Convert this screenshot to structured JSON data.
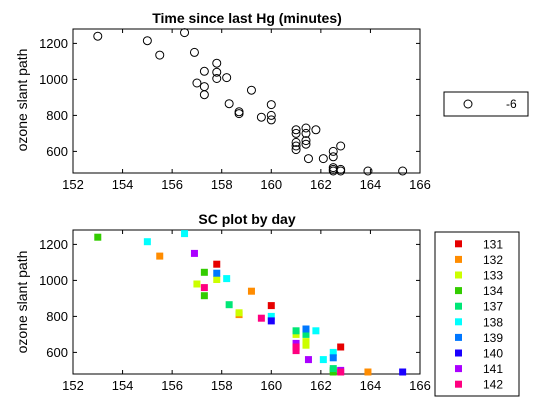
{
  "chart_data": [
    {
      "type": "scatter",
      "title": "Time since last Hg (minutes)",
      "ylabel": "ozone slant path",
      "xlim": [
        152,
        166
      ],
      "ylim": [
        480,
        1280
      ],
      "xticks": [
        152,
        154,
        156,
        158,
        160,
        162,
        164,
        166
      ],
      "yticks": [
        600,
        800,
        1000,
        1200
      ],
      "marker": "open-circle",
      "legend": {
        "placement": "right",
        "entries": [
          {
            "label": "-6"
          }
        ]
      },
      "series": [
        {
          "label": "-6",
          "points": [
            [
              153.0,
              1240
            ],
            [
              155.0,
              1215
            ],
            [
              155.5,
              1135
            ],
            [
              156.5,
              1260
            ],
            [
              156.9,
              1150
            ],
            [
              157.0,
              980
            ],
            [
              157.3,
              960
            ],
            [
              157.3,
              1045
            ],
            [
              157.3,
              915
            ],
            [
              157.8,
              1090
            ],
            [
              157.8,
              1040
            ],
            [
              157.8,
              1005
            ],
            [
              158.2,
              1010
            ],
            [
              158.3,
              865
            ],
            [
              158.7,
              820
            ],
            [
              158.7,
              810
            ],
            [
              159.2,
              940
            ],
            [
              159.6,
              790
            ],
            [
              160.0,
              860
            ],
            [
              160.0,
              800
            ],
            [
              160.0,
              775
            ],
            [
              161.0,
              720
            ],
            [
              161.0,
              700
            ],
            [
              161.0,
              650
            ],
            [
              161.0,
              630
            ],
            [
              161.0,
              610
            ],
            [
              161.4,
              730
            ],
            [
              161.4,
              700
            ],
            [
              161.4,
              660
            ],
            [
              161.4,
              640
            ],
            [
              161.5,
              560
            ],
            [
              161.8,
              720
            ],
            [
              162.1,
              560
            ],
            [
              162.5,
              600
            ],
            [
              162.5,
              570
            ],
            [
              162.5,
              510
            ],
            [
              162.5,
              500
            ],
            [
              162.5,
              490
            ],
            [
              162.8,
              630
            ],
            [
              162.8,
              500
            ],
            [
              162.8,
              480
            ],
            [
              163.9,
              480
            ],
            [
              165.3,
              478
            ]
          ]
        }
      ]
    },
    {
      "type": "scatter",
      "title": "SC plot by day",
      "ylabel": "ozone slant path",
      "xlim": [
        152,
        166
      ],
      "ylim": [
        480,
        1280
      ],
      "xticks": [
        152,
        154,
        156,
        158,
        160,
        162,
        164,
        166
      ],
      "yticks": [
        600,
        800,
        1000,
        1200
      ],
      "marker": "filled-square",
      "legend": {
        "placement": "right"
      },
      "series": [
        {
          "name": "131",
          "color": "#e60000",
          "points": [
            [
              157.8,
              1090
            ],
            [
              160.0,
              860
            ],
            [
              162.8,
              630
            ]
          ]
        },
        {
          "name": "132",
          "color": "#ff8c00",
          "points": [
            [
              155.5,
              1135
            ],
            [
              159.2,
              940
            ],
            [
              158.7,
              810
            ],
            [
              163.9,
              480
            ]
          ]
        },
        {
          "name": "133",
          "color": "#ccff00",
          "points": [
            [
              157.0,
              980
            ],
            [
              157.8,
              1005
            ],
            [
              158.7,
              820
            ],
            [
              161.0,
              700
            ],
            [
              161.4,
              660
            ],
            [
              161.4,
              640
            ]
          ]
        },
        {
          "name": "134",
          "color": "#33cc00",
          "points": [
            [
              153.0,
              1240
            ],
            [
              157.3,
              1045
            ],
            [
              157.3,
              915
            ],
            [
              162.5,
              500
            ],
            [
              162.5,
              490
            ]
          ]
        },
        {
          "name": "137",
          "color": "#00e676",
          "points": [
            [
              158.3,
              865
            ],
            [
              161.0,
              720
            ],
            [
              161.4,
              700
            ],
            [
              162.5,
              510
            ]
          ]
        },
        {
          "name": "138",
          "color": "#00ffff",
          "points": [
            [
              155.0,
              1215
            ],
            [
              156.5,
              1260
            ],
            [
              158.2,
              1010
            ],
            [
              161.8,
              720
            ],
            [
              160.0,
              800
            ],
            [
              162.1,
              560
            ],
            [
              162.5,
              600
            ]
          ]
        },
        {
          "name": "139",
          "color": "#0077ff",
          "points": [
            [
              157.8,
              1040
            ],
            [
              161.4,
              730
            ],
            [
              162.5,
              570
            ]
          ]
        },
        {
          "name": "140",
          "color": "#1a00ff",
          "points": [
            [
              160.0,
              775
            ],
            [
              165.3,
              478
            ]
          ]
        },
        {
          "name": "141",
          "color": "#aa00ff",
          "points": [
            [
              156.9,
              1150
            ],
            [
              161.0,
              650
            ],
            [
              162.8,
              500
            ],
            [
              161.5,
              560
            ]
          ]
        },
        {
          "name": "142",
          "color": "#ff0080",
          "points": [
            [
              157.3,
              960
            ],
            [
              159.6,
              790
            ],
            [
              161.0,
              610
            ],
            [
              161.0,
              630
            ],
            [
              162.8,
              480
            ]
          ]
        }
      ]
    }
  ]
}
